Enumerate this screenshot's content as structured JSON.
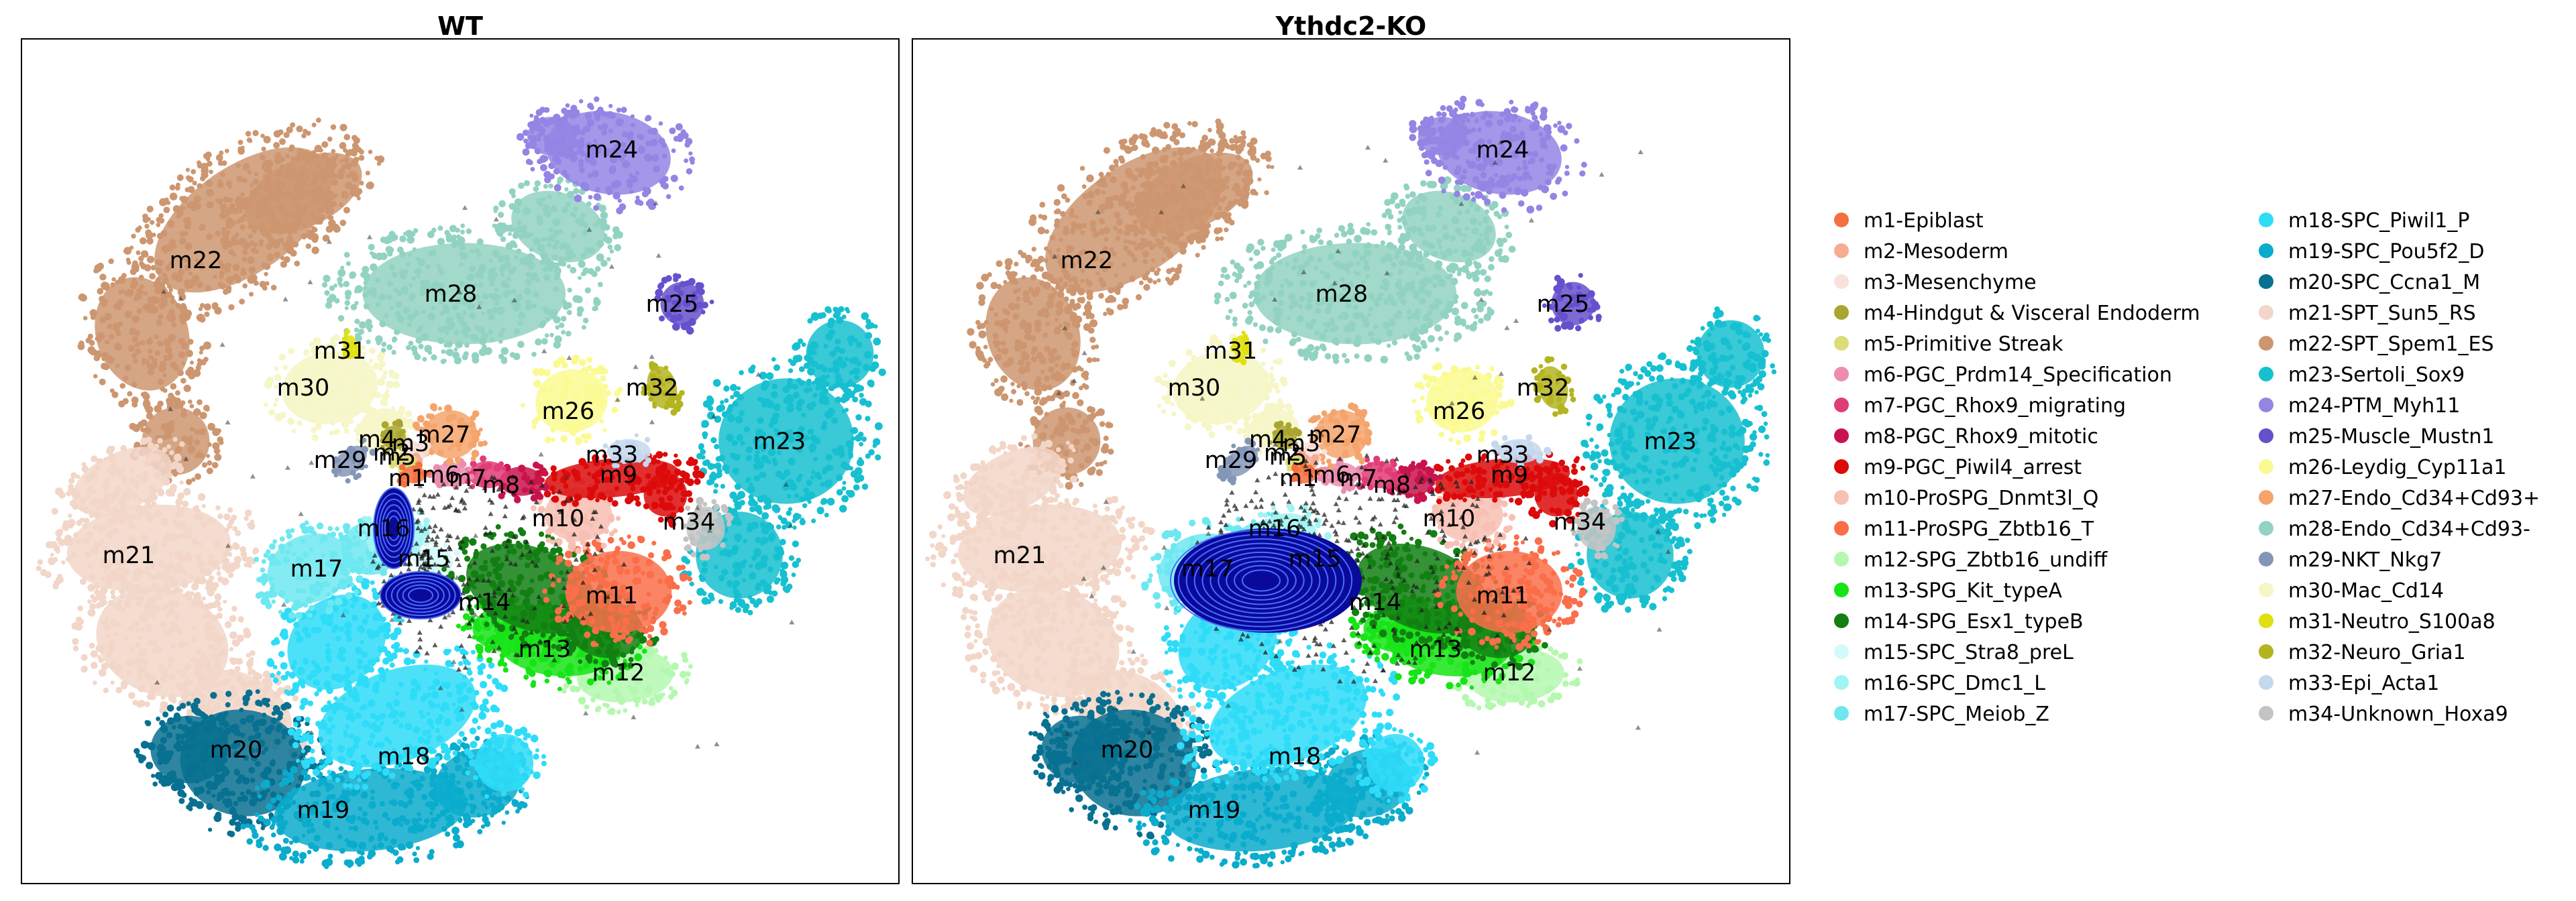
{
  "chart_data": [
    {
      "type": "scatter",
      "title": "WT",
      "clusters": [
        "m1",
        "m2",
        "m3",
        "m4",
        "m5",
        "m6",
        "m7",
        "m8",
        "m9",
        "m10",
        "m11",
        "m12",
        "m13",
        "m14",
        "m15",
        "m16",
        "m17",
        "m18",
        "m19",
        "m20",
        "m21",
        "m22",
        "m23",
        "m24",
        "m25",
        "m26",
        "m27",
        "m28",
        "m29",
        "m30",
        "m31",
        "m32",
        "m33",
        "m34"
      ],
      "overlay": "density-contours",
      "density_center": "m15-m16",
      "grid": false
    },
    {
      "type": "scatter",
      "title": "Ythdc2-KO",
      "clusters": [
        "m1",
        "m2",
        "m3",
        "m4",
        "m5",
        "m6",
        "m7",
        "m8",
        "m9",
        "m10",
        "m11",
        "m12",
        "m13",
        "m14",
        "m15",
        "m16",
        "m17",
        "m18",
        "m19",
        "m20",
        "m21",
        "m22",
        "m23",
        "m24",
        "m25",
        "m26",
        "m27",
        "m28",
        "m29",
        "m30",
        "m31",
        "m32",
        "m33",
        "m34"
      ],
      "overlay": "density-contours",
      "density_center": "m16",
      "grid": false
    }
  ],
  "legend": {
    "placement": "right",
    "entries": [
      {
        "id": "m1",
        "label": "m1-Epiblast",
        "color": "#f4703f"
      },
      {
        "id": "m2",
        "label": "m2-Mesoderm",
        "color": "#f6ab93"
      },
      {
        "id": "m3",
        "label": "m3-Mesenchyme",
        "color": "#f8e2dc"
      },
      {
        "id": "m4",
        "label": "m4-Hindgut & Visceral Endoderm",
        "color": "#a9a630"
      },
      {
        "id": "m5",
        "label": "m5-Primitive Streak",
        "color": "#dcdc78"
      },
      {
        "id": "m6",
        "label": "m6-PGC_Prdm14_Specification",
        "color": "#ec8cb0"
      },
      {
        "id": "m7",
        "label": "m7-PGC_Rhox9_migrating",
        "color": "#e03c78"
      },
      {
        "id": "m8",
        "label": "m8-PGC_Rhox9_mitotic",
        "color": "#c8144e"
      },
      {
        "id": "m9",
        "label": "m9-PGC_Piwil4_arrest",
        "color": "#dc0a0a"
      },
      {
        "id": "m10",
        "label": "m10-ProSPG_Dnmt3l_Q",
        "color": "#f8c0b4"
      },
      {
        "id": "m11",
        "label": "m11-ProSPG_Zbtb16_T",
        "color": "#fa6e4a"
      },
      {
        "id": "m12",
        "label": "m12-SPG_Zbtb16_undiff",
        "color": "#b4f8b0"
      },
      {
        "id": "m13",
        "label": "m13-SPG_Kit_typeA",
        "color": "#16e416"
      },
      {
        "id": "m14",
        "label": "m14-SPG_Esx1_typeB",
        "color": "#137f13"
      },
      {
        "id": "m15",
        "label": "m15-SPC_Stra8_preL",
        "color": "#d4f9f9"
      },
      {
        "id": "m16",
        "label": "m16-SPC_Dmc1_L",
        "color": "#a0f4f4"
      },
      {
        "id": "m17",
        "label": "m17-SPC_Meiob_Z",
        "color": "#6ee8f0"
      },
      {
        "id": "m18",
        "label": "m18-SPC_Piwil1_P",
        "color": "#2edcf8"
      },
      {
        "id": "m19",
        "label": "m19-SPC_Pou5f2_D",
        "color": "#0aaccc"
      },
      {
        "id": "m20",
        "label": "m20-SPC_Ccna1_M",
        "color": "#087090"
      },
      {
        "id": "m21",
        "label": "m21-SPT_Sun5_RS",
        "color": "#f2d6c8"
      },
      {
        "id": "m22",
        "label": "m22-SPT_Spem1_ES",
        "color": "#cc9670"
      },
      {
        "id": "m23",
        "label": "m23-Sertoli_Sox9",
        "color": "#16c0d0"
      },
      {
        "id": "m24",
        "label": "m24-PTM_Myh11",
        "color": "#9484e4"
      },
      {
        "id": "m25",
        "label": "m25-Muscle_Mustn1",
        "color": "#6650cc"
      },
      {
        "id": "m26",
        "label": "m26-Leydig_Cyp11a1",
        "color": "#fafa92"
      },
      {
        "id": "m27",
        "label": "m27-Endo_Cd34+Cd93+",
        "color": "#f4a46c"
      },
      {
        "id": "m28",
        "label": "m28-Endo_Cd34+Cd93-",
        "color": "#92d2c2"
      },
      {
        "id": "m29",
        "label": "m29-NKT_Nkg7",
        "color": "#8496b8"
      },
      {
        "id": "m30",
        "label": "m30-Mac_Cd14",
        "color": "#f6f6c6"
      },
      {
        "id": "m31",
        "label": "m31-Neutro_S100a8",
        "color": "#e0e010"
      },
      {
        "id": "m32",
        "label": "m32-Neuro_Gria1",
        "color": "#b4b420"
      },
      {
        "id": "m33",
        "label": "m33-Epi_Acta1",
        "color": "#c4d8ee"
      },
      {
        "id": "m34",
        "label": "m34-Unknown_Hoxa9",
        "color": "#c4c4c4"
      }
    ]
  }
}
